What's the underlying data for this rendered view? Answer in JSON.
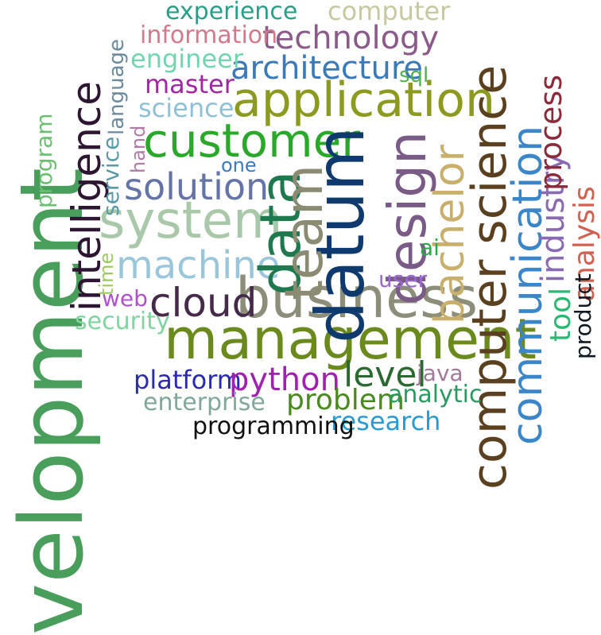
{
  "words": {
    "development": {
      "text": "velopment",
      "color": "#4a9e5c"
    },
    "management": {
      "text": "management",
      "color": "#6b8a1e"
    },
    "business": {
      "text": "business",
      "color": "#8d8e7a"
    },
    "datum": {
      "text": "datum",
      "color": "#0f3a6e"
    },
    "data": {
      "text": "data",
      "color": "#1e7a4e"
    },
    "team": {
      "text": "team",
      "color": "#8b8b74"
    },
    "design": {
      "text": "design",
      "color": "#7a5a86"
    },
    "computer_science": {
      "text": "computer science",
      "color": "#5b4020"
    },
    "communication": {
      "text": "communication",
      "color": "#3a86c8"
    },
    "application": {
      "text": "application",
      "color": "#8d9a20"
    },
    "customer": {
      "text": "customer",
      "color": "#2aa82a"
    },
    "system": {
      "text": "system",
      "color": "#a9c8a9"
    },
    "machine": {
      "text": "machine",
      "color": "#9ac6dc"
    },
    "solution": {
      "text": "solution",
      "color": "#6474a6"
    },
    "intelligence": {
      "text": "intelligence",
      "color": "#2e1633"
    },
    "cloud": {
      "text": "cloud",
      "color": "#452a4a"
    },
    "bachelor": {
      "text": "bachelor",
      "color": "#c8b06c"
    },
    "technology": {
      "text": "technology",
      "color": "#8a5a8a"
    },
    "architecture": {
      "text": "architecture",
      "color": "#3a7ab8"
    },
    "industry": {
      "text": "industry",
      "color": "#8a6ab0"
    },
    "process": {
      "text": "process",
      "color": "#8a2a3a"
    },
    "analysis": {
      "text": "analysis",
      "color": "#d06050"
    },
    "tool": {
      "text": "tool",
      "color": "#2ab870"
    },
    "product": {
      "text": "product",
      "color": "#101a22"
    },
    "experience": {
      "text": "experience",
      "color": "#28a088"
    },
    "computer": {
      "text": "computer",
      "color": "#c8c8a0"
    },
    "information": {
      "text": "information",
      "color": "#d07a8a"
    },
    "engineer": {
      "text": "engineer",
      "color": "#74d4b0"
    },
    "master": {
      "text": "master",
      "color": "#a028a0"
    },
    "science": {
      "text": "science",
      "color": "#90c0d8"
    },
    "language": {
      "text": "language",
      "color": "#6a8aa0"
    },
    "service": {
      "text": "service",
      "color": "#5a9aa8"
    },
    "hand": {
      "text": "hand",
      "color": "#b07aa8"
    },
    "program": {
      "text": "program",
      "color": "#6ac070"
    },
    "one": {
      "text": "one",
      "color": "#3a7ac0"
    },
    "sql": {
      "text": "sql",
      "color": "#50b050"
    },
    "ai": {
      "text": "ai",
      "color": "#2aa84a"
    },
    "user": {
      "text": "user",
      "color": "#9a6ad0"
    },
    "time": {
      "text": "time",
      "color": "#a0c860"
    },
    "web": {
      "text": "web",
      "color": "#b050d0"
    },
    "security": {
      "text": "security",
      "color": "#80d4a0"
    },
    "platform": {
      "text": "platform",
      "color": "#2a2ab0"
    },
    "python": {
      "text": "python",
      "color": "#a020b0"
    },
    "level": {
      "text": "level",
      "color": "#2a6a30"
    },
    "java": {
      "text": "java",
      "color": "#a07898"
    },
    "enterprise": {
      "text": "enterprise",
      "color": "#80a898"
    },
    "problem": {
      "text": "problem",
      "color": "#4a8a20"
    },
    "analytic": {
      "text": "analytic",
      "color": "#2a9a60"
    },
    "research": {
      "text": "research",
      "color": "#2a9ad0"
    },
    "programming": {
      "text": "programming",
      "color": "#101010"
    }
  }
}
